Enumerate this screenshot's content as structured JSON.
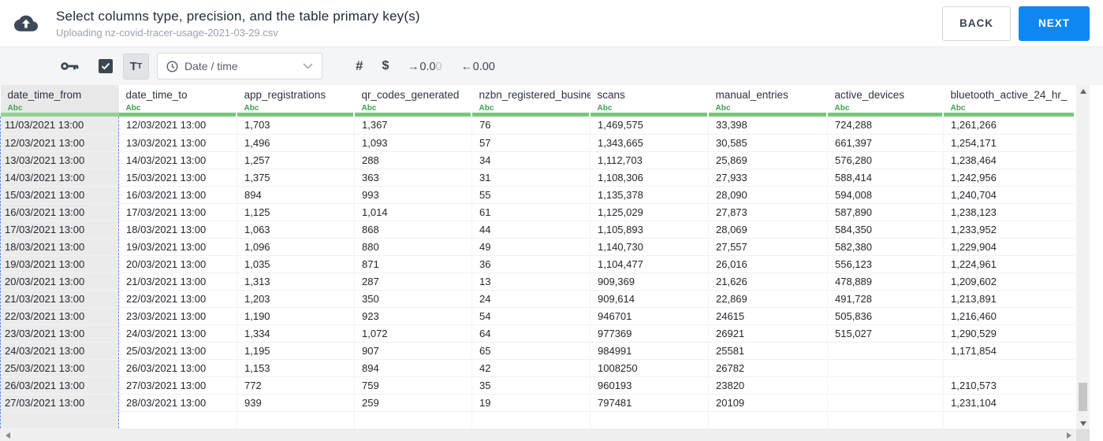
{
  "header": {
    "title": "Select columns type, precision, and the table primary key(s)",
    "subtitle": "Uploading nz-covid-tracer-usage-2021-03-29.csv",
    "back_label": "BACK",
    "next_label": "NEXT"
  },
  "toolbar": {
    "primary_key_icon": "key",
    "checkbox_checked": true,
    "text_format": {
      "big": "T",
      "small": "T"
    },
    "type_select": {
      "value": "Date / time",
      "icon": "clock"
    },
    "number_label": "#",
    "currency_label": "$",
    "increase_decimal": {
      "arrow": "→",
      "value": "0.0",
      "value_muted": "0"
    },
    "decrease_decimal": {
      "arrow": "←",
      "value": "0.00",
      "value_muted": ""
    }
  },
  "table": {
    "type_label": "Abc",
    "columns": [
      {
        "name": "date_time_from",
        "selected": true
      },
      {
        "name": "date_time_to",
        "selected": false
      },
      {
        "name": "app_registrations",
        "selected": false
      },
      {
        "name": "qr_codes_generated",
        "selected": false
      },
      {
        "name": "nzbn_registered_busine",
        "selected": false
      },
      {
        "name": "scans",
        "selected": false
      },
      {
        "name": "manual_entries",
        "selected": false
      },
      {
        "name": "active_devices",
        "selected": false
      },
      {
        "name": "bluetooth_active_24_hr_",
        "selected": false
      }
    ],
    "rows": [
      [
        "11/03/2021 13:00",
        "12/03/2021 13:00",
        "1,703",
        "1,367",
        "76",
        "1,469,575",
        "33,398",
        "724,288",
        "1,261,266"
      ],
      [
        "12/03/2021 13:00",
        "13/03/2021 13:00",
        "1,496",
        "1,093",
        "57",
        "1,343,665",
        "30,585",
        "661,397",
        "1,254,171"
      ],
      [
        "13/03/2021 13:00",
        "14/03/2021 13:00",
        "1,257",
        "288",
        "34",
        "1,112,703",
        "25,869",
        "576,280",
        "1,238,464"
      ],
      [
        "14/03/2021 13:00",
        "15/03/2021 13:00",
        "1,375",
        "363",
        "31",
        "1,108,306",
        "27,933",
        "588,414",
        "1,242,956"
      ],
      [
        "15/03/2021 13:00",
        "16/03/2021 13:00",
        "894",
        "993",
        "55",
        "1,135,378",
        "28,090",
        "594,008",
        "1,240,704"
      ],
      [
        "16/03/2021 13:00",
        "17/03/2021 13:00",
        "1,125",
        "1,014",
        "61",
        "1,125,029",
        "27,873",
        "587,890",
        "1,238,123"
      ],
      [
        "17/03/2021 13:00",
        "18/03/2021 13:00",
        "1,063",
        "868",
        "44",
        "1,105,893",
        "28,069",
        "584,350",
        "1,233,952"
      ],
      [
        "18/03/2021 13:00",
        "19/03/2021 13:00",
        "1,096",
        "880",
        "49",
        "1,140,730",
        "27,557",
        "582,380",
        "1,229,904"
      ],
      [
        "19/03/2021 13:00",
        "20/03/2021 13:00",
        "1,035",
        "871",
        "36",
        "1,104,477",
        "26,016",
        "556,123",
        "1,224,961"
      ],
      [
        "20/03/2021 13:00",
        "21/03/2021 13:00",
        "1,313",
        "287",
        "13",
        "909,369",
        "21,626",
        "478,889",
        "1,209,602"
      ],
      [
        "21/03/2021 13:00",
        "22/03/2021 13:00",
        "1,203",
        "350",
        "24",
        "909,614",
        "22,869",
        "491,728",
        "1,213,891"
      ],
      [
        "22/03/2021 13:00",
        "23/03/2021 13:00",
        "1,190",
        "923",
        "54",
        "946701",
        "24615",
        "505,836",
        "1,216,460"
      ],
      [
        "23/03/2021 13:00",
        "24/03/2021 13:00",
        "1,334",
        "1,072",
        "64",
        "977369",
        "26921",
        "515,027",
        "1,290,529"
      ],
      [
        "24/03/2021 13:00",
        "25/03/2021 13:00",
        "1,195",
        "907",
        "65",
        "984991",
        "25581",
        "",
        "1,171,854"
      ],
      [
        "25/03/2021 13:00",
        "26/03/2021 13:00",
        "1,153",
        "894",
        "42",
        "1008250",
        "26782",
        "",
        ""
      ],
      [
        "26/03/2021 13:00",
        "27/03/2021 13:00",
        "772",
        "759",
        "35",
        "960193",
        "23820",
        "",
        "1,210,573"
      ],
      [
        "27/03/2021 13:00",
        "28/03/2021 13:00",
        "939",
        "259",
        "19",
        "797481",
        "20109",
        "",
        "1,231,104"
      ]
    ]
  },
  "colors": {
    "accent": "#0f87f2",
    "type_green": "#3da24a",
    "header_underline_green": "#79c77c",
    "selected_underline_green": "#95d098",
    "selection_dash_blue": "#5c8df0",
    "toolbar_bg": "#f4f5f6",
    "dark_icon": "#3d4654"
  }
}
